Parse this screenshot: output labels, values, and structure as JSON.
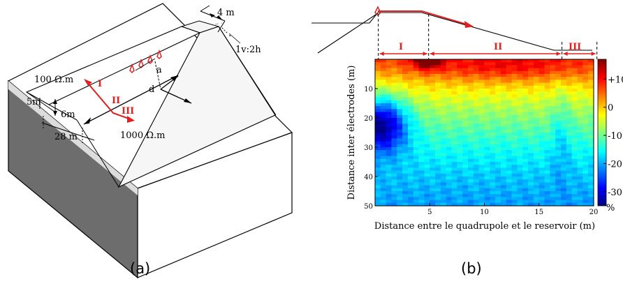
{
  "panel_a": {
    "caption": "(a)",
    "crest_width": "4 m",
    "slope": "1v:2h",
    "upper_resistivity": "100 Ω.m",
    "lower_resistivity": "1000 Ω.m",
    "dim_left": "5m",
    "height": "6m",
    "base_width": "28 m",
    "label_a": "a",
    "label_d": "d",
    "zone_1": "I",
    "zone_2": "II",
    "zone_3": "III"
  },
  "panel_b": {
    "caption": "(b)",
    "zone_1": "I",
    "zone_2": "II",
    "zone_3": "III",
    "xlabel": "Distance entre le quadrupole et le reservoir (m)",
    "ylabel": "Distance inter électrodes (m)",
    "x_ticks": [
      "5",
      "10",
      "15",
      "20"
    ],
    "y_ticks": [
      "10",
      "20",
      "30",
      "40",
      "50"
    ],
    "colorbar_ticks": [
      "+10",
      "0",
      "-10",
      "-20",
      "-30"
    ],
    "colorbar_unit": "%"
  },
  "chart_data": {
    "type": "heatmap",
    "xlabel": "Distance entre le quadrupole et le reservoir (m)",
    "ylabel": "Distance inter électrodes (m)",
    "xlim": [
      0,
      20
    ],
    "ylim": [
      0,
      50
    ],
    "x_ticks": [
      5,
      10,
      15,
      20
    ],
    "y_ticks": [
      10,
      20,
      30,
      40,
      50
    ],
    "zone_bounds": [
      0.3,
      4.9,
      17.1,
      20.3
    ],
    "colorbar": {
      "range": [
        -35,
        17
      ],
      "ticks": [
        10,
        0,
        -10,
        -20,
        -30
      ],
      "unit": "%"
    },
    "colors": {
      "accent": "#e02020"
    }
  }
}
